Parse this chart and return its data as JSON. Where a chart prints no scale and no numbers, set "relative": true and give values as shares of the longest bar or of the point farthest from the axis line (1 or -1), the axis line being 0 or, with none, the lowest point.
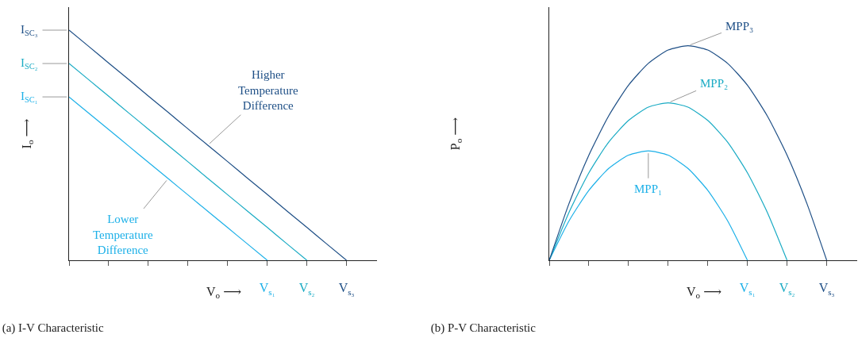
{
  "chart_data": [
    {
      "type": "line",
      "title": "(a) I-V Characteristic",
      "xlabel": "V$_{o}$ ⟶",
      "ylabel": "I$_{o}$ ⟶",
      "relative": true,
      "categories": [
        null,
        null,
        null,
        null,
        null,
        null,
        null,
        null,
        null,
        null,
        "V$_{s₁}$",
        null,
        "V$_{s₂}$",
        null,
        "V$_{s₃}$"
      ],
      "series": [
        {
          "color": "#1cb0e8",
          "values": [
            0.71,
            0.639,
            0.568,
            0.497,
            0.426,
            0.355,
            0.284,
            0.213,
            0.142,
            0.071,
            0,
            null,
            null,
            null,
            null
          ]
        },
        {
          "color": "#1aabc4",
          "values": [
            0.855,
            0.784,
            0.713,
            0.641,
            0.57,
            0.499,
            0.428,
            0.356,
            0.285,
            0.214,
            0.143,
            0.071,
            0,
            null,
            null
          ]
        },
        {
          "color": "#1e4f86",
          "values": [
            1,
            0.929,
            0.857,
            0.786,
            0.714,
            0.643,
            0.571,
            0.5,
            0.429,
            0.357,
            0.286,
            0.214,
            0.143,
            0.071,
            0
          ]
        }
      ],
      "annotations": [
        "I$_{SC₃}$",
        "I$_{SC₂}$",
        "I$_{SC₁}$",
        "Higher\nTemperature\nDifference",
        "Lower\nTemperature\nDifference"
      ]
    },
    {
      "type": "line",
      "title": "(b) P-V Characteristic",
      "xlabel": "V$_{o}$ ⟶",
      "ylabel": "P$_{o}$ ⟶",
      "relative": true,
      "categories": [
        null,
        null,
        null,
        null,
        null,
        null,
        null,
        null,
        null,
        null,
        "V$_{s₁}$",
        null,
        "V$_{s₂}$",
        null,
        "V$_{s₃}$"
      ],
      "series": [
        {
          "color": "#1cb0e8",
          "values": [
            0,
            0.184,
            0.326,
            0.428,
            0.49,
            0.51,
            0.49,
            0.428,
            0.326,
            0.184,
            0,
            null,
            null,
            null,
            null
          ]
        },
        {
          "color": "#1aabc4",
          "values": [
            0,
            0.224,
            0.408,
            0.551,
            0.652,
            0.714,
            0.734,
            0.714,
            0.652,
            0.551,
            0.408,
            0.224,
            0,
            null,
            null
          ]
        },
        {
          "color": "#1e4f86",
          "values": [
            0,
            0.265,
            0.49,
            0.673,
            0.816,
            0.918,
            0.98,
            1,
            0.98,
            0.918,
            0.816,
            0.673,
            0.49,
            0.265,
            0
          ]
        }
      ],
      "annotations": [
        "MPP₁",
        "MPP₂",
        "MPP₃"
      ]
    }
  ]
}
